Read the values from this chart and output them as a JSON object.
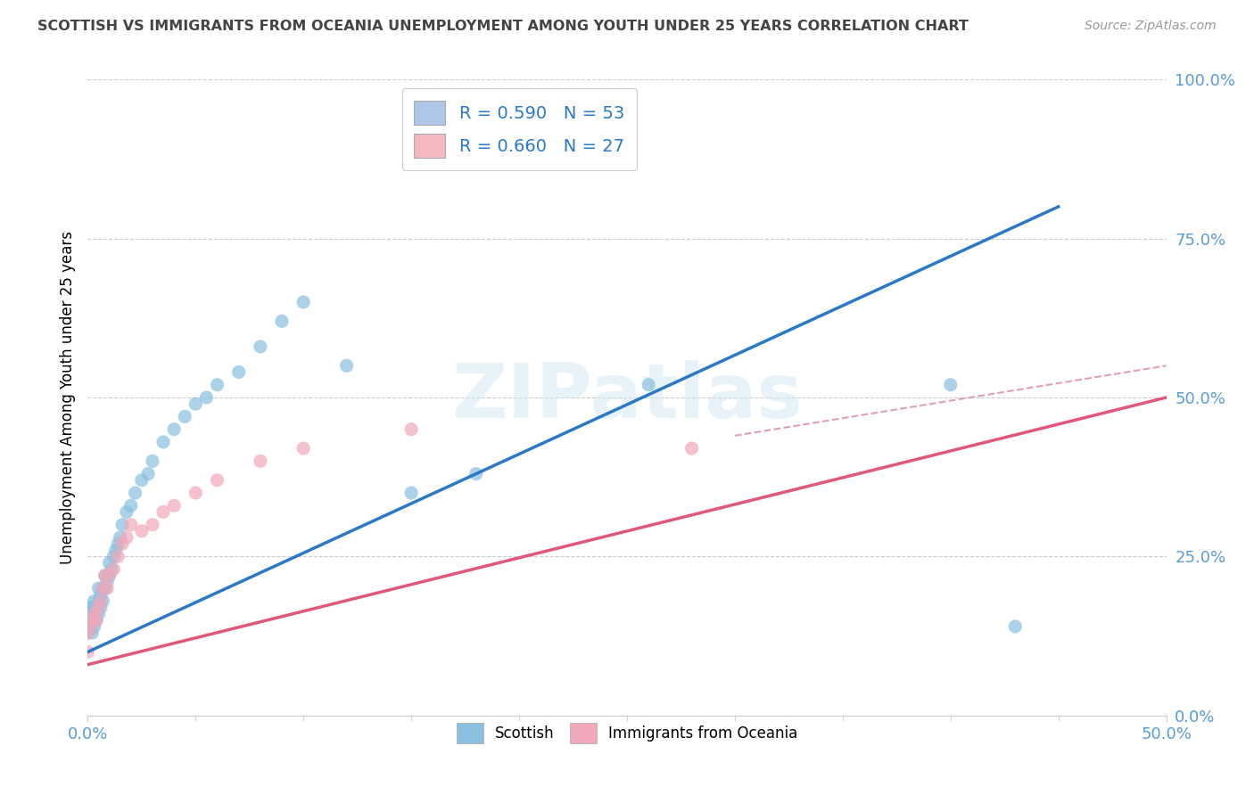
{
  "title": "SCOTTISH VS IMMIGRANTS FROM OCEANIA UNEMPLOYMENT AMONG YOUTH UNDER 25 YEARS CORRELATION CHART",
  "source": "Source: ZipAtlas.com",
  "ylabel": "Unemployment Among Youth under 25 years",
  "yticks": [
    "0.0%",
    "25.0%",
    "50.0%",
    "75.0%",
    "100.0%"
  ],
  "ytick_vals": [
    0.0,
    0.25,
    0.5,
    0.75,
    1.0
  ],
  "xtick_labels": [
    "0.0%",
    "50.0%"
  ],
  "xtick_vals": [
    0.0,
    0.5
  ],
  "xlim": [
    0.0,
    0.5
  ],
  "ylim": [
    0.0,
    1.0
  ],
  "watermark": "ZIPatlas",
  "legend_box_r1": "R = 0.590   N = 53",
  "legend_box_r2": "R = 0.660   N = 27",
  "legend_color1": "#aec6e8",
  "legend_color2": "#f4b8c1",
  "scottish_scatter_x": [
    0.0,
    0.0,
    0.0,
    0.001,
    0.001,
    0.002,
    0.002,
    0.002,
    0.003,
    0.003,
    0.003,
    0.004,
    0.004,
    0.005,
    0.005,
    0.005,
    0.006,
    0.006,
    0.007,
    0.007,
    0.008,
    0.008,
    0.009,
    0.01,
    0.01,
    0.011,
    0.012,
    0.013,
    0.014,
    0.015,
    0.016,
    0.018,
    0.02,
    0.022,
    0.025,
    0.028,
    0.03,
    0.035,
    0.04,
    0.045,
    0.05,
    0.055,
    0.06,
    0.07,
    0.08,
    0.09,
    0.1,
    0.12,
    0.15,
    0.18,
    0.26,
    0.4,
    0.43
  ],
  "scottish_scatter_y": [
    0.13,
    0.15,
    0.17,
    0.14,
    0.16,
    0.13,
    0.15,
    0.17,
    0.14,
    0.16,
    0.18,
    0.15,
    0.17,
    0.16,
    0.18,
    0.2,
    0.17,
    0.19,
    0.18,
    0.2,
    0.2,
    0.22,
    0.21,
    0.22,
    0.24,
    0.23,
    0.25,
    0.26,
    0.27,
    0.28,
    0.3,
    0.32,
    0.33,
    0.35,
    0.37,
    0.38,
    0.4,
    0.43,
    0.45,
    0.47,
    0.49,
    0.5,
    0.52,
    0.54,
    0.58,
    0.62,
    0.65,
    0.55,
    0.35,
    0.38,
    0.52,
    0.52,
    0.14
  ],
  "oceania_scatter_x": [
    0.0,
    0.0,
    0.001,
    0.002,
    0.003,
    0.004,
    0.005,
    0.006,
    0.007,
    0.008,
    0.009,
    0.01,
    0.012,
    0.014,
    0.016,
    0.018,
    0.02,
    0.025,
    0.03,
    0.035,
    0.04,
    0.05,
    0.06,
    0.08,
    0.1,
    0.15,
    0.28
  ],
  "oceania_scatter_y": [
    0.1,
    0.13,
    0.14,
    0.15,
    0.16,
    0.15,
    0.17,
    0.18,
    0.2,
    0.22,
    0.2,
    0.22,
    0.23,
    0.25,
    0.27,
    0.28,
    0.3,
    0.29,
    0.3,
    0.32,
    0.33,
    0.35,
    0.37,
    0.4,
    0.42,
    0.45,
    0.42
  ],
  "scottish_line_x": [
    0.0,
    0.45
  ],
  "scottish_line_y": [
    0.1,
    0.8
  ],
  "oceania_line_x": [
    0.0,
    0.5
  ],
  "oceania_line_y": [
    0.08,
    0.5
  ],
  "oceania_dashed_line_x": [
    0.3,
    0.5
  ],
  "oceania_dashed_line_y": [
    0.44,
    0.55
  ],
  "scottish_color": "#89c0e0",
  "oceania_color": "#f0a8ba",
  "scottish_line_color": "#2979c8",
  "oceania_line_color": "#e05878",
  "oceania_dashed_color": "#e0a0b0",
  "grid_color": "#cccccc",
  "background_color": "#ffffff",
  "title_color": "#444444",
  "tick_label_color": "#5b9bd5"
}
